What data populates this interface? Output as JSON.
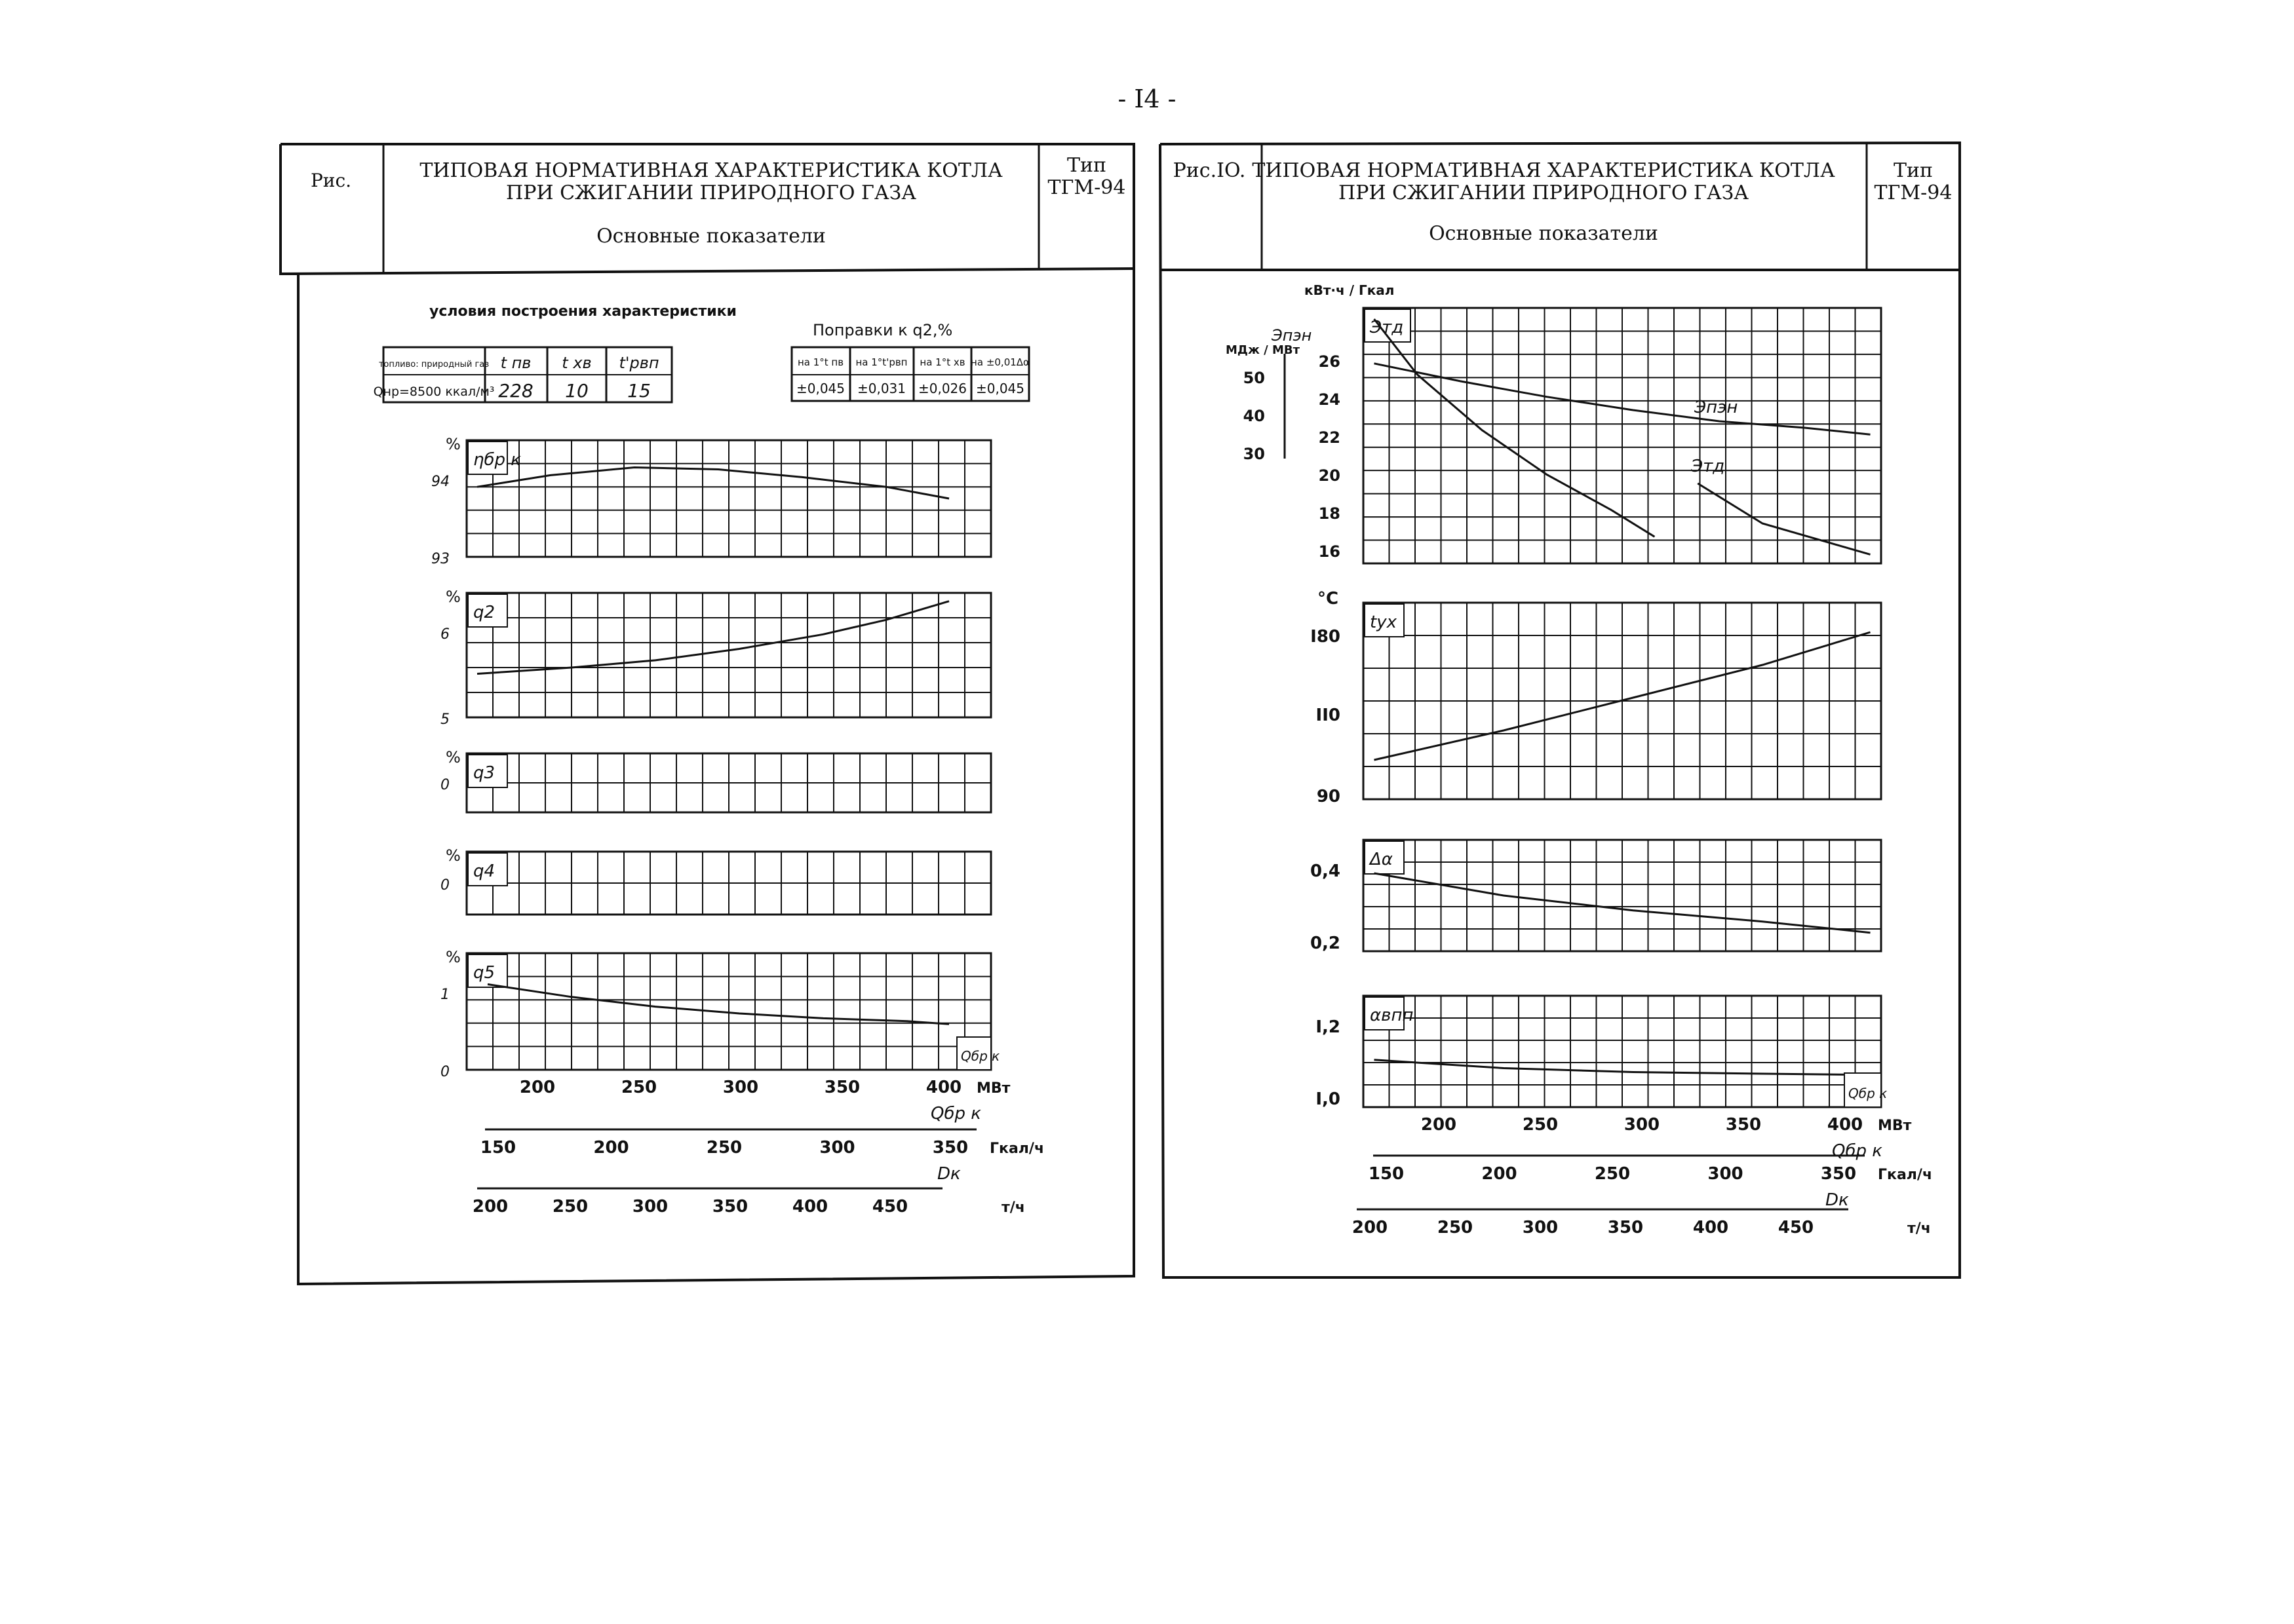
{
  "page_number": "- I4 -",
  "left": {
    "fig_label": "Рис.",
    "title_line1": "ТИПОВАЯ НОРМАТИВНАЯ ХАРАКТЕРИСТИКА КОТЛА",
    "title_line2": "ПРИ СЖИГАНИИ ПРИРОДНОГО ГАЗА",
    "subtitle": "Основные показатели",
    "type_label": "Тип",
    "type_value": "ТГМ-94",
    "conditions_title": "условия построения характеристики",
    "conditions": {
      "h1": "топливо: природный газ",
      "v1": "Qнр=8500 ккал/м³",
      "h2": "t пв",
      "v2": "228",
      "h3": "t хв",
      "v3": "10",
      "h4": "t'рвп",
      "v4": "15"
    },
    "corrections_title": "Поправки к q2,%",
    "corrections": {
      "h1": "на 1°t пв",
      "v1": "±0,045",
      "h2": "на 1°t'рвп",
      "v2": "±0,031",
      "h3": "на 1°t хв",
      "v3": "±0,026",
      "h4": "на ±0,01Δα",
      "v4": "±0,045"
    }
  },
  "right": {
    "fig_label": "Рис.IO.",
    "title_line1": "ТИПОВАЯ НОРМАТИВНАЯ ХАРАКТЕРИСТИКА КОТЛА",
    "title_line2": "ПРИ СЖИГАНИИ ПРИРОДНОГО ГАЗА",
    "subtitle": "Основные показатели",
    "type_label": "Тип",
    "type_value": "ТГМ-94"
  },
  "chart_data": [
    {
      "type": "line",
      "panel": "left-1",
      "ylabel": "%",
      "series_label": "ηбр к",
      "y_ticks": [
        "94",
        "93"
      ],
      "x_unit": "МВт",
      "series": [
        {
          "name": "ηбр к",
          "x": [
            175,
            210,
            250,
            290,
            330,
            370,
            400
          ],
          "values": [
            93.72,
            93.84,
            93.92,
            93.9,
            93.82,
            93.72,
            93.6
          ]
        }
      ],
      "ylim": [
        93,
        94.2
      ],
      "xlim": [
        170,
        420
      ]
    },
    {
      "type": "line",
      "panel": "left-2",
      "ylabel": "%",
      "series_label": "q2",
      "y_ticks": [
        "6",
        "5"
      ],
      "series": [
        {
          "name": "q2",
          "x": [
            175,
            220,
            260,
            300,
            340,
            370,
            400
          ],
          "values": [
            5.42,
            5.48,
            5.55,
            5.66,
            5.8,
            5.94,
            6.12
          ]
        }
      ],
      "ylim": [
        5,
        6.2
      ],
      "xlim": [
        170,
        420
      ]
    },
    {
      "type": "line",
      "panel": "left-3",
      "ylabel": "%",
      "series_label": "q3",
      "y_ticks": [
        "0"
      ],
      "series": [
        {
          "name": "q3",
          "x": [
            175,
            420
          ],
          "values": [
            0,
            0
          ]
        }
      ],
      "ylim": [
        0,
        1
      ],
      "xlim": [
        170,
        420
      ]
    },
    {
      "type": "line",
      "panel": "left-4",
      "ylabel": "%",
      "series_label": "q4",
      "y_ticks": [
        "0"
      ],
      "series": [
        {
          "name": "q4",
          "x": [
            175,
            420
          ],
          "values": [
            0,
            0
          ]
        }
      ],
      "ylim": [
        0,
        1
      ],
      "xlim": [
        170,
        420
      ]
    },
    {
      "type": "line",
      "panel": "left-5",
      "ylabel": "%",
      "series_label": "q5",
      "y_ticks": [
        "1",
        "0"
      ],
      "x_label_inset": "Qбр к",
      "series": [
        {
          "name": "q5",
          "x": [
            180,
            220,
            260,
            300,
            340,
            380,
            400
          ],
          "values": [
            0.88,
            0.75,
            0.65,
            0.58,
            0.53,
            0.5,
            0.47
          ]
        }
      ],
      "ylim": [
        0,
        1.2
      ],
      "xlim": [
        170,
        420
      ]
    },
    {
      "type": "axes",
      "panel": "left-axes",
      "axis1": {
        "ticks": [
          "200",
          "250",
          "300",
          "350",
          "400"
        ],
        "values": [
          200,
          250,
          300,
          350,
          400
        ],
        "unit": "МВт",
        "label": "Qбр к"
      },
      "axis2": {
        "ticks": [
          "150",
          "200",
          "250",
          "300",
          "350"
        ],
        "values": [
          150,
          200,
          250,
          300,
          350
        ],
        "unit": "Гкал/ч",
        "label": "Dк"
      },
      "axis3": {
        "ticks": [
          "200",
          "250",
          "300",
          "350",
          "400",
          "450"
        ],
        "values": [
          200,
          250,
          300,
          350,
          400,
          450
        ],
        "unit": "т/ч"
      }
    },
    {
      "type": "line",
      "panel": "right-1",
      "y_units": [
        "кВт·ч / Гкал",
        "МДж / МВт"
      ],
      "y_ticks_inner": [
        "26",
        "24",
        "22",
        "20",
        "18",
        "16"
      ],
      "y_ticks_outer": [
        "50",
        "40",
        "30"
      ],
      "label_top": "Этд",
      "labels": [
        "Эпэн",
        "Этд"
      ],
      "series": [
        {
          "name": "Эпэн",
          "x": [
            180,
            220,
            260,
            300,
            340,
            380,
            410
          ],
          "values": [
            25,
            24.2,
            23.5,
            22.9,
            22.4,
            22.1,
            21.8
          ]
        },
        {
          "name": "Этд",
          "x": [
            180,
            200,
            230,
            260,
            290,
            310,
            330,
            360,
            410
          ],
          "values": [
            27,
            24.5,
            22,
            20,
            18.4,
            17.2,
            19.6,
            17.8,
            16.4
          ]
        }
      ],
      "ylim": [
        16,
        27.5
      ],
      "xlim": [
        175,
        415
      ]
    },
    {
      "type": "line",
      "panel": "right-2",
      "ylabel": "°C",
      "series_label": "tух",
      "y_ticks": [
        "I80",
        "II0",
        "90"
      ],
      "series": [
        {
          "name": "tух",
          "x": [
            180,
            240,
            300,
            360,
            410
          ],
          "values": [
            102,
            111,
            121,
            131,
            141
          ]
        }
      ],
      "ylim": [
        90,
        150
      ],
      "xlim": [
        175,
        415
      ]
    },
    {
      "type": "line",
      "panel": "right-3",
      "series_label": "Δα",
      "y_ticks": [
        "0,4",
        "0,2"
      ],
      "series": [
        {
          "name": "Δα",
          "x": [
            180,
            240,
            300,
            360,
            410
          ],
          "values": [
            0.41,
            0.35,
            0.31,
            0.28,
            0.25
          ]
        }
      ],
      "ylim": [
        0.2,
        0.5
      ],
      "xlim": [
        175,
        415
      ]
    },
    {
      "type": "line",
      "panel": "right-4",
      "series_label": "αвпп",
      "y_ticks": [
        "I,2",
        "I,0"
      ],
      "x_label_inset": "Qбр к",
      "series": [
        {
          "name": "αвпп",
          "x": [
            180,
            240,
            300,
            360,
            410
          ],
          "values": [
            1.085,
            1.07,
            1.063,
            1.06,
            1.058
          ]
        }
      ],
      "ylim": [
        1.0,
        1.2
      ],
      "xlim": [
        175,
        415
      ]
    },
    {
      "type": "axes",
      "panel": "right-axes",
      "axis1": {
        "ticks": [
          "200",
          "250",
          "300",
          "350",
          "400"
        ],
        "values": [
          200,
          250,
          300,
          350,
          400
        ],
        "unit": "МВт",
        "label": "Qбр к"
      },
      "axis2": {
        "ticks": [
          "150",
          "200",
          "250",
          "300",
          "350"
        ],
        "values": [
          150,
          200,
          250,
          300,
          350
        ],
        "unit": "Гкал/ч",
        "label": "Dк"
      },
      "axis3": {
        "ticks": [
          "200",
          "250",
          "300",
          "350",
          "400",
          "450"
        ],
        "values": [
          200,
          250,
          300,
          350,
          400,
          450
        ],
        "unit": "т/ч"
      }
    }
  ]
}
